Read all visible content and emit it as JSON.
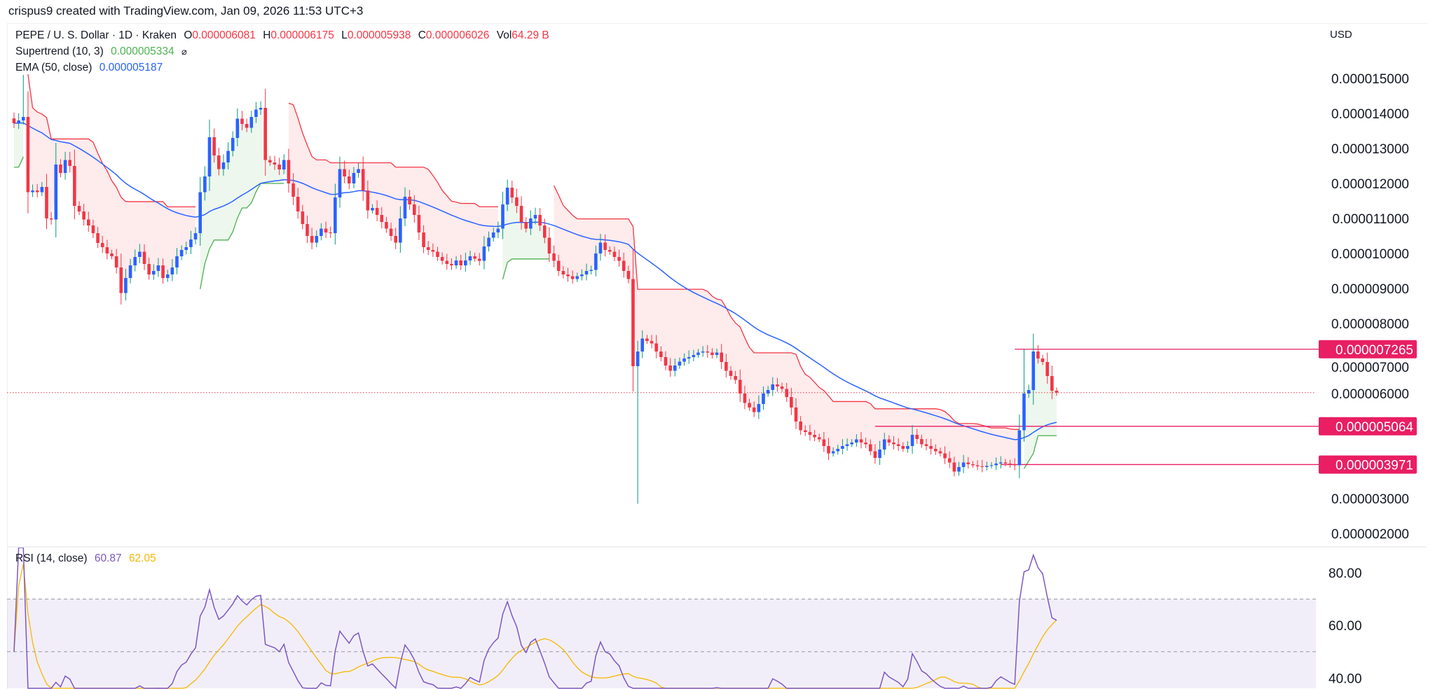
{
  "credit": "crispus9 created with TradingView.com, Jan 09, 2026 11:53 UTC+3",
  "legend": {
    "symbol": "PEPE / U. S. Dollar · 1D · Kraken",
    "o_label": "O",
    "o_value": "0.000006081",
    "h_label": "H",
    "h_value": "0.000006175",
    "l_label": "L",
    "l_value": "0.000005938",
    "c_label": "C",
    "c_value": "0.000006026",
    "vol_label": "Vol",
    "vol_value": "64.29 B",
    "supertrend_label": "Supertrend (10, 3)",
    "supertrend_value": "0.000005334",
    "supertrend_icon": "hidden-eye-slash-icon",
    "ema_label": "EMA (50, close)",
    "ema_value": "0.000005187"
  },
  "rsi_legend": {
    "label": "RSI (14, close)",
    "rsi_value": "60.87",
    "ma_value": "62.05"
  },
  "currency": "USD",
  "colors": {
    "up": "#2962ff",
    "up_wick": "#089981",
    "down": "#f23645",
    "supertrend_up": "#4caf50",
    "supertrend_down": "#f23645",
    "ema": "#2962ff",
    "rsi": "#7e57c2",
    "rsi_ma": "#f5b700",
    "level_box": "#e91e63"
  },
  "chart_data": {
    "type": "candlestick",
    "price_axis": {
      "ticks": [
        "0.000015000",
        "0.000014000",
        "0.000013000",
        "0.000012000",
        "0.000011000",
        "0.000010000",
        "0.000009000",
        "0.000008000",
        "0.000007000",
        "0.000006000",
        "0.000003000",
        "0.000002000"
      ],
      "tick_values": [
        1.5e-05,
        1.4e-05,
        1.3e-05,
        1.2e-05,
        1.1e-05,
        1e-05,
        9e-06,
        8e-06,
        7e-06,
        6e-06,
        3e-06,
        2e-06
      ],
      "range": [
        1.5e-06,
        1.55e-05
      ]
    },
    "closes": [
      1.372e-05,
      1.38e-05,
      1.39e-05,
      1.175e-05,
      1.18e-05,
      1.175e-05,
      1.19e-05,
      1.1e-05,
      1.097e-05,
      1.254e-05,
      1.23e-05,
      1.267e-05,
      1.25e-05,
      1.136e-05,
      1.12e-05,
      1.097e-05,
      1.08e-05,
      1.058e-05,
      1.03e-05,
      1.018e-05,
      1e-05,
      9.92e-06,
      9.6e-06,
      8.87e-06,
      9.3e-06,
      9.66e-06,
      9.9e-06,
      1.005e-05,
      9.7e-06,
      9.4e-06,
      9.5e-06,
      9.66e-06,
      9.3e-06,
      9.4e-06,
      9.6e-06,
      9.92e-06,
      1.01e-05,
      1.018e-05,
      1.04e-05,
      1.058e-05,
      1.175e-05,
      1.22e-05,
      1.332e-05,
      1.28e-05,
      1.241e-05,
      1.26e-05,
      1.293e-05,
      1.33e-05,
      1.385e-05,
      1.37e-05,
      1.359e-05,
      1.39e-05,
      1.411e-05,
      1.416e-05,
      1.267e-05,
      1.26e-05,
      1.254e-05,
      1.24e-05,
      1.267e-05,
      1.2e-05,
      1.162e-05,
      1.12e-05,
      1.084e-05,
      1.05e-05,
      1.031e-05,
      1.05e-05,
      1.071e-05,
      1.06e-05,
      1.058e-05,
      1.16e-05,
      1.241e-05,
      1.22e-05,
      1.2e-05,
      1.23e-05,
      1.241e-05,
      1.18e-05,
      1.123e-05,
      1.13e-05,
      1.11e-05,
      1.09e-05,
      1.071e-05,
      1.05e-05,
      1.031e-05,
      1.1e-05,
      1.162e-05,
      1.14e-05,
      1.11e-05,
      1.06e-05,
      1.018e-05,
      1.01e-05,
      1.005e-05,
      9.9e-06,
      9.79e-06,
      9.7e-06,
      9.66e-06,
      9.8e-06,
      9.66e-06,
      9.8e-06,
      9.92e-06,
      9.85e-06,
      9.79e-06,
      1.02e-05,
      1.045e-05,
      1.06e-05,
      1.071e-05,
      1.14e-05,
      1.188e-05,
      1.16e-05,
      1.136e-05,
      1.09e-05,
      1.071e-05,
      1.1e-05,
      1.11e-05,
      1.08e-05,
      1.045e-05,
      1e-05,
      9.79e-06,
      9.5e-06,
      9.4e-06,
      9.35e-06,
      9.27e-06,
      9.35e-06,
      9.4e-06,
      9.5e-06,
      9.53e-06,
      1e-05,
      1.031e-05,
      1.01e-05,
      1.005e-05,
      9.9e-06,
      9.79e-06,
      9.5e-06,
      9.27e-06,
      6.78e-06,
      7.2e-06,
      7.57e-06,
      7.5e-06,
      7.43e-06,
      7.2e-06,
      7.04e-06,
      6.8e-06,
      6.65e-06,
      6.8e-06,
      6.91e-06,
      7e-06,
      7.04e-06,
      7.1e-06,
      7.17e-06,
      7.2e-06,
      7.17e-06,
      7.1e-06,
      7.17e-06,
      6.9e-06,
      6.65e-06,
      6.5e-06,
      6.39e-06,
      6e-06,
      5.73e-06,
      5.6e-06,
      5.47e-06,
      5.7e-06,
      6e-06,
      6.1e-06,
      6.26e-06,
      6.2e-06,
      6.13e-06,
      5.9e-06,
      5.6e-06,
      5.2e-06,
      4.95e-06,
      4.9e-06,
      4.82e-06,
      4.75e-06,
      4.69e-06,
      4.5e-06,
      4.29e-06,
      4.35e-06,
      4.42e-06,
      4.5e-06,
      4.55e-06,
      4.6e-06,
      4.69e-06,
      4.6e-06,
      4.55e-06,
      4.35e-06,
      4.16e-06,
      4.4e-06,
      4.69e-06,
      4.6e-06,
      4.55e-06,
      4.5e-06,
      4.42e-06,
      4.5e-06,
      4.82e-06,
      4.7e-06,
      4.55e-06,
      4.5e-06,
      4.42e-06,
      4.35e-06,
      4.29e-06,
      4.15e-06,
      4.03e-06,
      3.77e-06,
      3.9e-06,
      4.03e-06,
      3.98e-06,
      3.95e-06,
      3.92e-06,
      3.9e-06,
      3.93e-06,
      3.95e-06,
      4e-06,
      4.03e-06,
      4e-06,
      3.97e-06,
      3.95e-06,
      4.95e-06,
      6e-06,
      6.1e-06,
      7.2e-06,
      7e-06,
      6.9e-06,
      6.5e-06,
      6.081e-06,
      6.026e-06
    ],
    "wick_overrides": [
      {
        "i": 2,
        "high": 1.51e-05
      },
      {
        "i": 134,
        "low": 2.85e-06
      },
      {
        "i": 217,
        "high": 7.265e-06
      },
      {
        "i": 224,
        "open": 6.081e-06,
        "high": 6.175e-06,
        "low": 5.938e-06
      }
    ],
    "last_price": 6.026e-06,
    "levels": [
      {
        "value": 7.265e-06,
        "label": "0.000007265",
        "from_index": 215
      },
      {
        "value": 5.064e-06,
        "label": "0.000005064",
        "from_index": 185
      },
      {
        "value": 3.971e-06,
        "label": "0.000003971",
        "from_index": 212
      }
    ],
    "indicators": {
      "supertrend": {
        "period": 10,
        "multiplier": 3
      },
      "ema": {
        "period": 50
      },
      "rsi": {
        "period": 14,
        "ma_period": 14
      }
    },
    "rsi_axis": {
      "ticks": [
        "80.00",
        "60.00",
        "40.00"
      ],
      "tick_values": [
        80,
        60,
        40
      ],
      "bands": [
        70,
        50,
        30
      ]
    },
    "grid": false
  }
}
